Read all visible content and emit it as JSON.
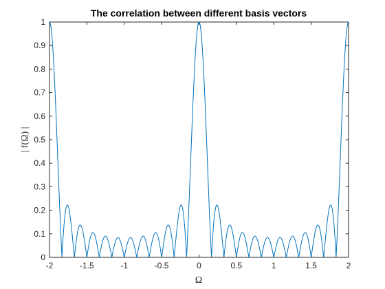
{
  "chart_data": {
    "type": "line",
    "title": "The correlation between different basis vectors",
    "xlabel": "Ω",
    "ylabel": "| f(Ω) |",
    "xlim": [
      -2,
      2
    ],
    "ylim": [
      0,
      1
    ],
    "xticks": [
      "-2",
      "-1.5",
      "-1",
      "-0.5",
      "0",
      "0.5",
      "1",
      "1.5",
      "2"
    ],
    "yticks": [
      "0",
      "0.1",
      "0.2",
      "0.3",
      "0.4",
      "0.5",
      "0.6",
      "0.7",
      "0.8",
      "0.9",
      "1"
    ],
    "grid": false,
    "line_color": "#0072BD",
    "series": [
      {
        "description": "Periodic sinc magnitude |sin(N·πΩ/2)/(N·sin(πΩ/2))| with N=12; peaks of 1 at Ω = -2, 0, 2; first sidelobes ≈0.22",
        "N": 12,
        "x_start": -2,
        "x_end": 2
      }
    ]
  }
}
